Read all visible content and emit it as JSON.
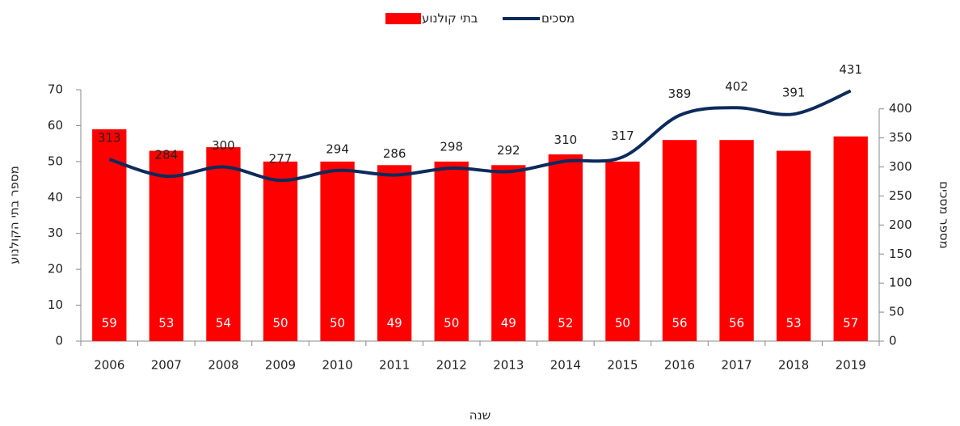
{
  "chart_data": {
    "type": "bar-line",
    "categories": [
      "2006",
      "2007",
      "2008",
      "2009",
      "2010",
      "2011",
      "2012",
      "2013",
      "2014",
      "2015",
      "2016",
      "2017",
      "2018",
      "2019"
    ],
    "series": [
      {
        "name": "בתי קולנוע",
        "type": "bar",
        "color": "#ff0000",
        "axis": "y",
        "values": [
          59,
          53,
          54,
          50,
          50,
          49,
          50,
          49,
          52,
          50,
          56,
          56,
          53,
          57
        ]
      },
      {
        "name": "מסכים",
        "type": "line",
        "color": "#0d2a5c",
        "axis": "y2",
        "values": [
          313,
          284,
          300,
          277,
          294,
          286,
          298,
          292,
          310,
          317,
          389,
          402,
          391,
          431
        ]
      }
    ],
    "ylim": [
      0,
      70
    ],
    "yticks": [
      0,
      10,
      20,
      30,
      40,
      50,
      60,
      70
    ],
    "y2lim": [
      0,
      433
    ],
    "y2ticks": [
      0,
      50,
      100,
      150,
      200,
      250,
      300,
      350,
      400
    ],
    "ylabel": "מספר בתי הקולנוע",
    "y2label": "מספר מסכים",
    "xlabel": "שנה",
    "legend": "top"
  }
}
